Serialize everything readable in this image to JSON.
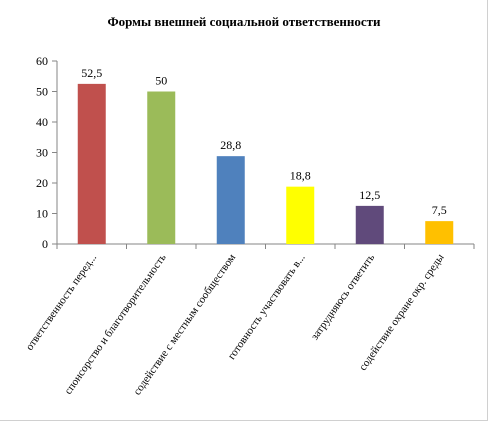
{
  "chart_data": {
    "type": "bar",
    "title": "Формы внешней социальной ответственности",
    "xlabel": "",
    "ylabel": "",
    "ylim": [
      0,
      60
    ],
    "yticks": [
      0,
      10,
      20,
      30,
      40,
      50,
      60
    ],
    "grid": false,
    "legend": "none",
    "categories": [
      "ответственность перед...",
      "спонсорство и благотворительность",
      "содействие с местным сообществом",
      "готовность участвовать в...",
      "затрудняюсь ответить",
      "содействие охране окр. среды"
    ],
    "values": [
      52.5,
      50,
      28.8,
      18.8,
      12.5,
      7.5
    ],
    "value_labels": [
      "52,5",
      "50",
      "28,8",
      "18,8",
      "12,5",
      "7,5"
    ],
    "colors": [
      "#c0504d",
      "#9bbb59",
      "#4f81bd",
      "#ffff00",
      "#604a7b",
      "#ffc000"
    ]
  }
}
